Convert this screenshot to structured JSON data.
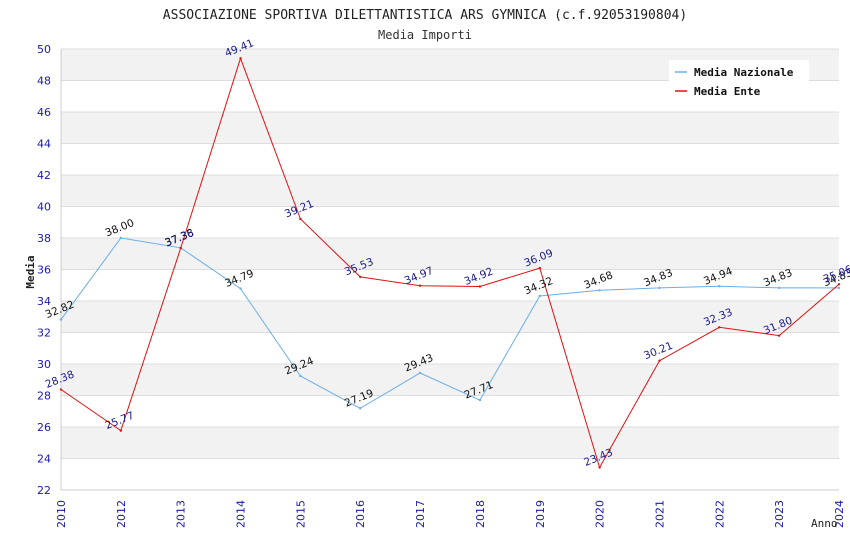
{
  "chart_data": {
    "type": "line",
    "title": "ASSOCIAZIONE SPORTIVA DILETTANTISTICA ARS GYMNICA (c.f.92053190804)",
    "subtitle": "Media Importi",
    "xlabel": "Anno",
    "ylabel": "Media",
    "ylim": [
      22,
      50
    ],
    "yticks": [
      22,
      24,
      26,
      28,
      30,
      32,
      34,
      36,
      38,
      40,
      42,
      44,
      46,
      48,
      50
    ],
    "categories": [
      "2010",
      "2012",
      "2013",
      "2014",
      "2015",
      "2016",
      "2017",
      "2018",
      "2019",
      "2020",
      "2021",
      "2022",
      "2023",
      "2024"
    ],
    "grid": "horizontal, alternating bands",
    "legend_position": "top-right",
    "series": [
      {
        "name": "Media Nazionale",
        "color": "#6aaee8",
        "label_color": "#111111",
        "values": [
          32.82,
          38.0,
          37.38,
          34.79,
          29.24,
          27.19,
          29.43,
          27.71,
          34.32,
          34.68,
          34.83,
          34.94,
          34.83,
          34.83
        ],
        "labels": [
          "32.82",
          "38.00",
          "37.38",
          "34.79",
          "29.24",
          "27.19",
          "29.43",
          "27.71",
          "34.32",
          "34.68",
          "34.83",
          "34.94",
          "34.83",
          "34.83"
        ]
      },
      {
        "name": "Media Ente",
        "color": "#e01010",
        "label_color": "#1a1a8c",
        "values": [
          28.38,
          25.77,
          37.36,
          49.41,
          39.21,
          35.53,
          34.97,
          34.92,
          36.09,
          23.43,
          30.21,
          32.33,
          31.8,
          35.06
        ],
        "labels": [
          "28.38",
          "25.77",
          "37.36",
          "49.41",
          "39.21",
          "35.53",
          "34.97",
          "34.92",
          "36.09",
          "23.43",
          "30.21",
          "32.33",
          "31.80",
          "35.06"
        ]
      }
    ]
  }
}
